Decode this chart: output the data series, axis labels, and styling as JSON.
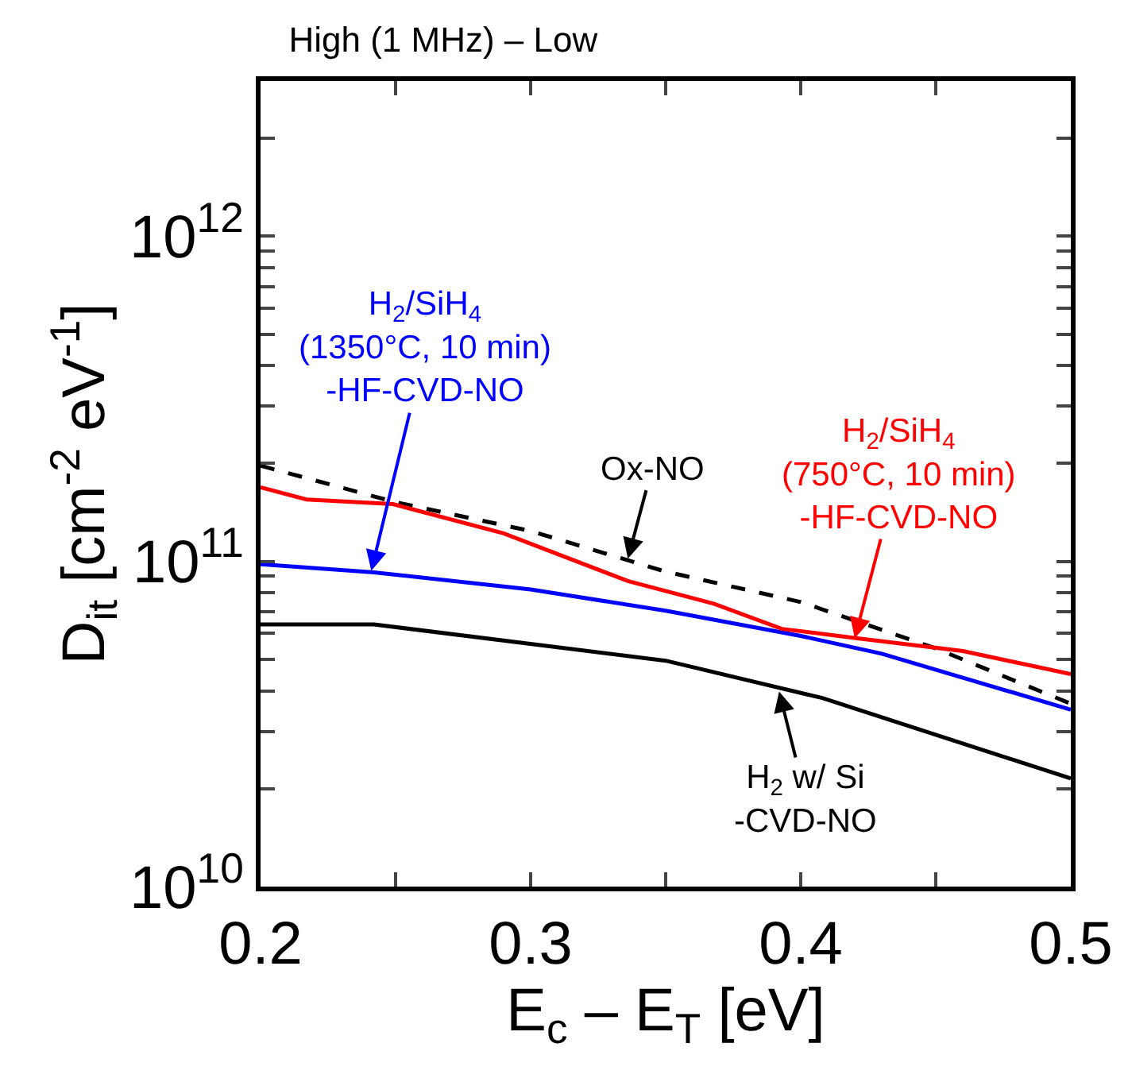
{
  "chart_data": {
    "type": "line",
    "title": "High (1 MHz) – Low",
    "xlabel": "E$_{c}$ – E$_{T}$ [eV]",
    "ylabel": "D$_{it}$ [cm$^{-2}$ eV$^{-1}$]",
    "log": "y",
    "grid": false,
    "marker": "none",
    "xlim": [
      0.2,
      0.5
    ],
    "xticks": [
      0.2,
      {
        "value": 0.25,
        "label": null
      },
      0.3,
      {
        "value": 0.35,
        "label": null
      },
      0.4,
      {
        "value": 0.45,
        "label": null
      },
      0.5
    ],
    "ylim": [
      10000000000.0,
      3000000000000.0
    ],
    "yticks": [
      {
        "value": 10000000000.0,
        "label": "10$^{10}$"
      },
      {
        "value": 20000000000.0,
        "label": null
      },
      {
        "value": 30000000000.0,
        "label": null
      },
      {
        "value": 40000000000.0,
        "label": null
      },
      {
        "value": 50000000000.0,
        "label": null
      },
      {
        "value": 60000000000.0,
        "label": null
      },
      {
        "value": 70000000000.0,
        "label": null
      },
      {
        "value": 80000000000.0,
        "label": null
      },
      {
        "value": 90000000000.0,
        "label": null
      },
      {
        "value": 100000000000.0,
        "label": "10$^{11}$"
      },
      {
        "value": 200000000000.0,
        "label": null
      },
      {
        "value": 300000000000.0,
        "label": null
      },
      {
        "value": 400000000000.0,
        "label": null
      },
      {
        "value": 500000000000.0,
        "label": null
      },
      {
        "value": 600000000000.0,
        "label": null
      },
      {
        "value": 700000000000.0,
        "label": null
      },
      {
        "value": 800000000000.0,
        "label": null
      },
      {
        "value": 900000000000.0,
        "label": null
      },
      {
        "value": 1000000000000.0,
        "label": "10$^{12}$"
      },
      {
        "value": 2000000000000.0,
        "label": null
      },
      {
        "value": 3000000000000.0,
        "label": null
      }
    ],
    "series": [
      {
        "color": "#0000ff",
        "line_style": "solid",
        "x": [
          0.2,
          0.242,
          0.3,
          0.35,
          0.4,
          0.43,
          0.5
        ],
        "values": [
          98000000000.0,
          92500000000.0,
          82000000000.0,
          70500000000.0,
          59000000000.0,
          52000000000.0,
          35000000000.0
        ]
      },
      {
        "color": "#000000",
        "line_style": "dashed",
        "x": [
          0.2,
          0.25,
          0.3,
          0.35,
          0.4,
          0.45,
          0.5
        ],
        "values": [
          197000000000.0,
          152000000000.0,
          124000000000.0,
          93000000000.0,
          75000000000.0,
          54000000000.0,
          36500000000.0
        ]
      },
      {
        "color": "#ff0000",
        "line_style": "solid",
        "x": [
          0.2,
          0.217,
          0.249,
          0.29,
          0.336,
          0.368,
          0.393,
          0.421,
          0.46,
          0.5
        ],
        "values": [
          169000000000.0,
          155000000000.0,
          150000000000.0,
          122000000000.0,
          87000000000.0,
          74000000000.0,
          62000000000.0,
          58000000000.0,
          53000000000.0,
          45000000000.0
        ]
      },
      {
        "color": "#000000",
        "line_style": "solid",
        "x": [
          0.2,
          0.242,
          0.35,
          0.408,
          0.5
        ],
        "values": [
          64000000000.0,
          64000000000.0,
          49500000000.0,
          38000000000.0,
          21500000000.0
        ]
      }
    ],
    "annotations": [
      {
        "text": "H$_{2}$/SiH$_{4}$\n(1350°C, 10 min)\n-HF-CVD-NO",
        "x": 0.241,
        "y": 93500000000.0
      },
      {
        "text": "Ox-NO",
        "x": 0.336,
        "y": 102000000000.0
      },
      {
        "text": "H$_{2}$/SiH$_{4}$\n(750°C, 10 min)\n-HF-CVD-NO",
        "x": 0.42,
        "y": 58000000000.0
      },
      {
        "text": "H$_{2}$ w/ Si\n-CVD-NO",
        "x": 0.392,
        "y": 39800000000.0
      }
    ]
  }
}
